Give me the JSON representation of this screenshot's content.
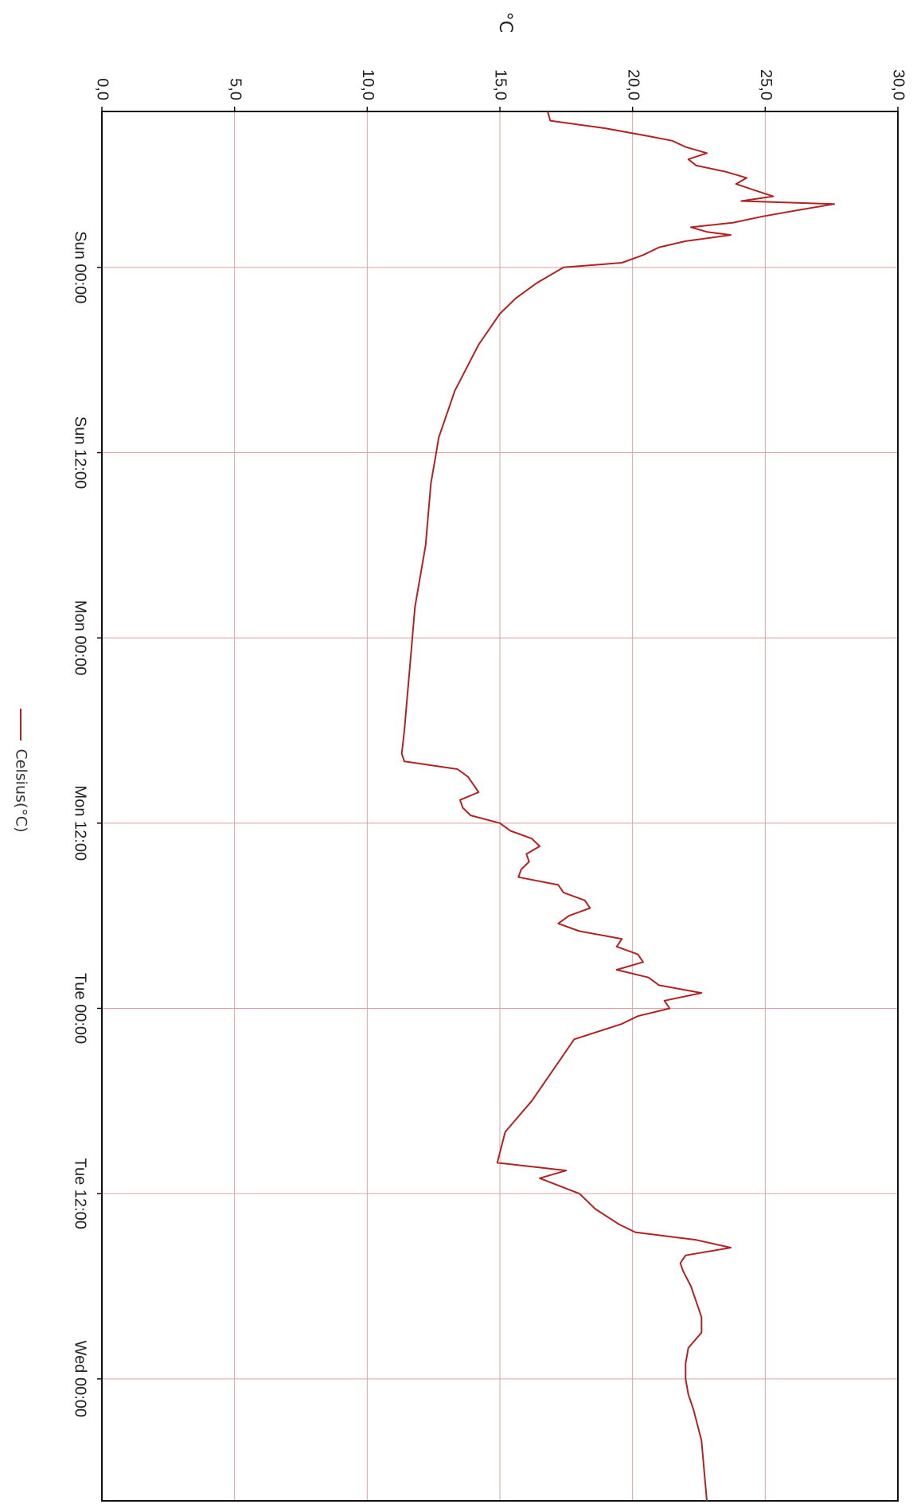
{
  "chart_data": {
    "type": "line",
    "orientation": "rotated-90-clockwise",
    "ylabel": "°C",
    "ylim": [
      0,
      30
    ],
    "y_ticks": [
      "0,0",
      "5,0",
      "10,0",
      "15,0",
      "20,0",
      "25,0",
      "30,0"
    ],
    "x_ticks": [
      "Sun 00:00",
      "Sun 12:00",
      "Mon 00:00",
      "Mon 12:00",
      "Tue 00:00",
      "Tue 12:00",
      "Wed 00:00"
    ],
    "x_unit": "hours from Sun 00:00",
    "xlim": [
      -10.1,
      79.9
    ],
    "grid": true,
    "legend_position": "bottom",
    "series": [
      {
        "name": "Celsius(°C)",
        "color": "#b22222",
        "points": [
          [
            -10.1,
            16.8
          ],
          [
            -9.5,
            16.9
          ],
          [
            -9.0,
            19.0
          ],
          [
            -8.5,
            20.6
          ],
          [
            -8.2,
            21.5
          ],
          [
            -7.8,
            22.0
          ],
          [
            -7.4,
            22.8
          ],
          [
            -7.0,
            22.1
          ],
          [
            -6.6,
            22.4
          ],
          [
            -6.2,
            23.5
          ],
          [
            -5.8,
            24.3
          ],
          [
            -5.4,
            23.9
          ],
          [
            -5.0,
            24.6
          ],
          [
            -4.6,
            25.3
          ],
          [
            -4.3,
            24.1
          ],
          [
            -4.1,
            27.6
          ],
          [
            -3.7,
            26.2
          ],
          [
            -3.3,
            24.9
          ],
          [
            -2.9,
            23.8
          ],
          [
            -2.6,
            22.2
          ],
          [
            -2.3,
            22.8
          ],
          [
            -2.1,
            23.7
          ],
          [
            -1.7,
            22.0
          ],
          [
            -1.3,
            21.0
          ],
          [
            -0.8,
            20.4
          ],
          [
            -0.3,
            19.6
          ],
          [
            0.0,
            17.4
          ],
          [
            1.0,
            16.4
          ],
          [
            2.0,
            15.6
          ],
          [
            3.0,
            15.0
          ],
          [
            4.0,
            14.6
          ],
          [
            5.0,
            14.2
          ],
          [
            6.0,
            13.9
          ],
          [
            7.0,
            13.6
          ],
          [
            8.0,
            13.3
          ],
          [
            9.0,
            13.1
          ],
          [
            10.0,
            12.9
          ],
          [
            11.0,
            12.7
          ],
          [
            12.0,
            12.6
          ],
          [
            14.0,
            12.4
          ],
          [
            16.0,
            12.3
          ],
          [
            18.0,
            12.2
          ],
          [
            20.0,
            12.0
          ],
          [
            22.0,
            11.8
          ],
          [
            24.0,
            11.7
          ],
          [
            26.0,
            11.6
          ],
          [
            28.0,
            11.5
          ],
          [
            30.0,
            11.4
          ],
          [
            31.5,
            11.3
          ],
          [
            32.0,
            11.4
          ],
          [
            32.5,
            13.4
          ],
          [
            33.0,
            13.8
          ],
          [
            33.5,
            14.0
          ],
          [
            34.0,
            14.2
          ],
          [
            34.5,
            13.5
          ],
          [
            35.0,
            13.6
          ],
          [
            35.5,
            13.9
          ],
          [
            36.0,
            15.0
          ],
          [
            36.5,
            15.4
          ],
          [
            37.0,
            16.2
          ],
          [
            37.5,
            16.5
          ],
          [
            38.0,
            16.0
          ],
          [
            38.5,
            16.1
          ],
          [
            39.0,
            15.8
          ],
          [
            39.5,
            15.7
          ],
          [
            40.0,
            17.2
          ],
          [
            40.5,
            17.4
          ],
          [
            41.0,
            18.2
          ],
          [
            41.5,
            18.4
          ],
          [
            42.0,
            17.6
          ],
          [
            42.5,
            17.2
          ],
          [
            43.0,
            18.0
          ],
          [
            43.5,
            19.6
          ],
          [
            44.0,
            19.4
          ],
          [
            44.5,
            20.2
          ],
          [
            45.0,
            20.4
          ],
          [
            45.5,
            19.4
          ],
          [
            46.0,
            20.6
          ],
          [
            46.5,
            21.0
          ],
          [
            47.0,
            22.6
          ],
          [
            47.5,
            21.2
          ],
          [
            48.0,
            21.4
          ],
          [
            48.5,
            20.2
          ],
          [
            49.0,
            19.6
          ],
          [
            50.0,
            17.8
          ],
          [
            52.0,
            17.0
          ],
          [
            54.0,
            16.2
          ],
          [
            56.0,
            15.2
          ],
          [
            58.0,
            14.9
          ],
          [
            58.5,
            17.5
          ],
          [
            59.0,
            16.5
          ],
          [
            60.0,
            18.0
          ],
          [
            61.0,
            18.6
          ],
          [
            62.0,
            19.5
          ],
          [
            62.5,
            20.1
          ],
          [
            63.0,
            22.4
          ],
          [
            63.5,
            23.7
          ],
          [
            64.0,
            22.0
          ],
          [
            64.5,
            21.8
          ],
          [
            65.0,
            21.9
          ],
          [
            66.0,
            22.2
          ],
          [
            67.0,
            22.4
          ],
          [
            68.0,
            22.6
          ],
          [
            69.0,
            22.6
          ],
          [
            70.0,
            22.1
          ],
          [
            71.0,
            22.0
          ],
          [
            72.0,
            22.0
          ],
          [
            73.0,
            22.1
          ],
          [
            74.0,
            22.3
          ],
          [
            76.0,
            22.6
          ],
          [
            78.0,
            22.7
          ],
          [
            79.9,
            22.8
          ]
        ]
      }
    ]
  }
}
